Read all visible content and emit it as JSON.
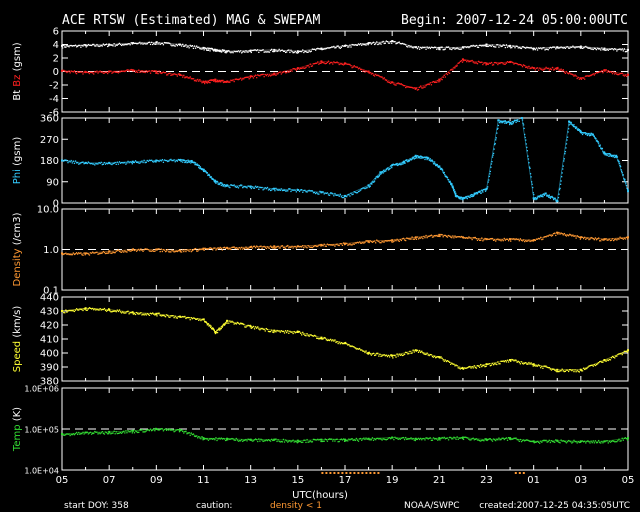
{
  "header": {
    "title": "ACE RTSW (Estimated) MAG & SWEPAM",
    "begin": "Begin: 2007-12-24 05:00:00UTC"
  },
  "footer": {
    "start_doy": "start DOY: 358",
    "caution": "caution:",
    "density_note": "density < 1",
    "noaa": "NOAA/SWPC",
    "created": "created:2007-12-25 04:35:05UTC"
  },
  "colors": {
    "bt": "#ffffff",
    "bz": "#ff2020",
    "phi": "#33ccff",
    "density": "#ff9933",
    "speed": "#ffff33",
    "temp": "#33dd33",
    "note": "#ff9933"
  },
  "chart_data": {
    "type": "scatter",
    "x_label": "UTC(hours)",
    "x_ticks": [
      "05",
      "07",
      "09",
      "11",
      "13",
      "15",
      "17",
      "19",
      "21",
      "23",
      "01",
      "03",
      "05"
    ],
    "panels": [
      {
        "id": "magnetic",
        "ylabel_parts": [
          "Bt",
          "Bz",
          "(gsm)"
        ],
        "ylim": [
          -6,
          6
        ],
        "ticks": [
          "6",
          "4",
          "2",
          "0",
          "-2",
          "-4",
          "-6"
        ],
        "reference": 0,
        "series": [
          {
            "name": "Bt",
            "color": "#ffffff",
            "x": [
              0,
              1,
              2,
              3,
              4,
              5,
              6,
              6.5,
              7,
              8,
              9,
              10,
              11,
              12,
              13,
              14,
              15,
              16,
              17,
              18,
              19,
              20,
              21,
              22,
              23,
              24
            ],
            "y": [
              3.8,
              3.9,
              4.0,
              4.2,
              4.3,
              4.0,
              3.5,
              3.2,
              3.0,
              3.1,
              3.2,
              3.0,
              3.4,
              3.8,
              4.2,
              4.5,
              3.6,
              3.5,
              3.6,
              4.0,
              3.8,
              3.4,
              3.6,
              3.7,
              3.4,
              3.2
            ]
          },
          {
            "name": "Bz",
            "color": "#ff2020",
            "x": [
              0,
              1,
              2,
              3,
              4,
              5,
              6,
              6.5,
              7,
              8,
              9,
              10,
              11,
              12,
              13,
              14,
              15,
              16,
              17,
              18,
              19,
              20,
              21,
              22,
              23,
              24
            ],
            "y": [
              0.1,
              -0.1,
              0.0,
              0.2,
              0.0,
              -0.5,
              -1.5,
              -1.2,
              -1.5,
              -0.7,
              -0.3,
              0.5,
              1.5,
              1.2,
              0,
              -1.6,
              -2.5,
              -1.2,
              1.8,
              1.2,
              1.4,
              0.5,
              0.5,
              -1.0,
              0.2,
              -0.5
            ]
          }
        ]
      },
      {
        "id": "phi",
        "ylabel_parts": [
          "Phi",
          "(gsm)"
        ],
        "ylim": [
          0,
          360
        ],
        "ticks": [
          "360",
          "270",
          "180",
          "90",
          "0"
        ],
        "series": [
          {
            "name": "Phi",
            "color": "#33ccff",
            "x": [
              0,
              1,
              2,
              3,
              4,
              5,
              5.5,
              6,
              6.5,
              7,
              8,
              9,
              10,
              11,
              12,
              13,
              13.5,
              14,
              14.5,
              15,
              15.5,
              16,
              16.5,
              16.7,
              17,
              17.5,
              18,
              18.5,
              19,
              19.5,
              20,
              20.5,
              21,
              21.5,
              22,
              22.5,
              23,
              23.5,
              24
            ],
            "y": [
              180,
              170,
              170,
              175,
              180,
              182,
              178,
              140,
              90,
              75,
              70,
              60,
              55,
              45,
              30,
              75,
              130,
              160,
              175,
              200,
              190,
              155,
              80,
              30,
              20,
              40,
              60,
              350,
              340,
              360,
              20,
              40,
              10,
              345,
              300,
              290,
              210,
              200,
              50
            ]
          }
        ]
      },
      {
        "id": "density",
        "ylabel_parts": [
          "Density",
          "(/cm3)"
        ],
        "ylim": [
          0.1,
          10
        ],
        "log": true,
        "ticks": [
          "10.0",
          "1.0",
          "0.1"
        ],
        "reference": 1.0,
        "series": [
          {
            "name": "Density",
            "color": "#ff9933",
            "x": [
              0,
              1,
              2,
              3,
              4,
              5,
              6,
              7,
              8,
              9,
              10,
              11,
              12,
              13,
              14,
              15,
              16,
              17,
              18,
              19,
              20,
              21,
              22,
              23,
              24
            ],
            "y": [
              0.8,
              0.8,
              0.9,
              1.0,
              1.0,
              0.95,
              1.05,
              1.1,
              1.15,
              1.2,
              1.2,
              1.3,
              1.4,
              1.6,
              1.7,
              2.0,
              2.3,
              2.0,
              1.8,
              1.8,
              1.7,
              2.6,
              2.0,
              1.8,
              2.0
            ]
          }
        ]
      },
      {
        "id": "speed",
        "ylabel_parts": [
          "Speed",
          "(km/s)"
        ],
        "ylim": [
          380,
          440
        ],
        "ticks": [
          "440",
          "430",
          "420",
          "410",
          "400",
          "390",
          "380"
        ],
        "series": [
          {
            "name": "Speed",
            "color": "#ffff33",
            "x": [
              0,
              1,
              2,
              3,
              4,
              5,
              6,
              6.5,
              7,
              8,
              9,
              10,
              11,
              12,
              13,
              14,
              15,
              16,
              17,
              18,
              19,
              20,
              21,
              22,
              23,
              24
            ],
            "y": [
              430,
              432,
              431,
              429,
              428,
              426,
              424,
              415,
              423,
              419,
              416,
              415,
              411,
              407,
              400,
              398,
              402,
              397,
              389,
              392,
              395,
              392,
              388,
              388,
              395,
              402
            ]
          }
        ]
      },
      {
        "id": "temp",
        "ylabel_parts": [
          "Temp",
          "(K)"
        ],
        "ylim": [
          10000,
          1000000
        ],
        "log": true,
        "ticks": [
          "1.0E+06",
          "1.0E+05",
          "1.0E+04"
        ],
        "reference": 100000,
        "series": [
          {
            "name": "Temp",
            "color": "#33dd33",
            "x": [
              0,
              1,
              2,
              3,
              4,
              5,
              6,
              7,
              8,
              9,
              10,
              11,
              12,
              13,
              14,
              15,
              16,
              17,
              18,
              19,
              20,
              21,
              22,
              23,
              24
            ],
            "y": [
              75000,
              82000,
              85000,
              90000,
              100000,
              95000,
              60000,
              58000,
              55000,
              55000,
              52000,
              55000,
              55000,
              58000,
              62000,
              58000,
              60000,
              62000,
              55000,
              60000,
              50000,
              52000,
              50000,
              50000,
              60000
            ]
          }
        ]
      }
    ]
  }
}
